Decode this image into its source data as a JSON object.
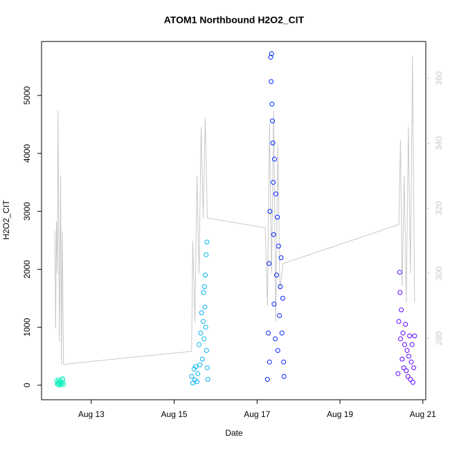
{
  "chart_data": {
    "type": "scatter",
    "title": "ATOM1 Northbound H2O2_CIT",
    "x_label": "Date",
    "y_label": "H2O2_CIT",
    "xlim": [
      11.8,
      21.07
    ],
    "xticks": [
      {
        "value": 13,
        "label": "Aug 13"
      },
      {
        "value": 15,
        "label": "Aug 15"
      },
      {
        "value": 17,
        "label": "Aug 17"
      },
      {
        "value": 19,
        "label": "Aug 19"
      },
      {
        "value": 21,
        "label": "Aug 21"
      }
    ],
    "ylim": [
      -251,
      5931
    ],
    "yticks": [
      0,
      1000,
      2000,
      3000,
      4000,
      5000
    ],
    "y2lim": [
      261.1,
      371.3
    ],
    "y2ticks": [
      280,
      300,
      320,
      340,
      360
    ],
    "series": [
      {
        "color": "#19f0c0",
        "x": [
          12.16,
          12.18,
          12.19,
          12.2,
          12.21,
          12.22,
          12.23,
          12.24,
          12.25,
          12.26,
          12.27,
          12.28,
          12.3,
          12.31,
          12.32,
          12.33
        ],
        "values": [
          80,
          20,
          50,
          10,
          95,
          30,
          60,
          5,
          40,
          70,
          15,
          25,
          90,
          110,
          45,
          10
        ]
      },
      {
        "color": "#00b2f0",
        "x": [
          15.42,
          15.45,
          15.48,
          15.5,
          15.52,
          15.55,
          15.57,
          15.6,
          15.62,
          15.64,
          15.66,
          15.68,
          15.7,
          15.71,
          15.72,
          15.73,
          15.74,
          15.75,
          15.76,
          15.77,
          15.78,
          15.79,
          15.8,
          15.81
        ],
        "values": [
          150,
          40,
          280,
          90,
          320,
          60,
          200,
          700,
          350,
          900,
          1250,
          450,
          1100,
          1600,
          800,
          1700,
          1350,
          1900,
          1000,
          2250,
          600,
          2470,
          300,
          100
        ]
      },
      {
        "color": "#0020ff",
        "x": [
          17.25,
          17.27,
          17.29,
          17.3,
          17.31,
          17.33,
          17.34,
          17.35,
          17.36,
          17.37,
          17.38,
          17.39,
          17.4,
          17.41,
          17.42,
          17.44,
          17.45,
          17.47,
          17.49,
          17.5,
          17.52,
          17.54,
          17.56,
          17.58,
          17.6,
          17.62,
          17.64,
          17.65
        ],
        "values": [
          100,
          900,
          2100,
          400,
          3000,
          5660,
          5240,
          5720,
          4850,
          4560,
          4180,
          3500,
          2600,
          1400,
          3900,
          800,
          3300,
          1900,
          2900,
          600,
          2400,
          1200,
          1700,
          2200,
          900,
          1500,
          400,
          150
        ]
      },
      {
        "color": "#5a00ff",
        "x": [
          20.4,
          20.42,
          20.44,
          20.45,
          20.46,
          20.48,
          20.5,
          20.52,
          20.54,
          20.56,
          20.58,
          20.6,
          20.62,
          20.64,
          20.66,
          20.68,
          20.7,
          20.72,
          20.74,
          20.76,
          20.78,
          20.8
        ],
        "values": [
          200,
          1100,
          1950,
          1600,
          800,
          1300,
          450,
          900,
          300,
          700,
          1050,
          250,
          600,
          150,
          500,
          850,
          100,
          400,
          700,
          50,
          300,
          850
        ]
      }
    ],
    "line": {
      "color": "#c8c8c8",
      "axis": "y2",
      "x": [
        12.12,
        12.14,
        12.16,
        12.18,
        12.2,
        12.23,
        12.26,
        12.28,
        12.3,
        12.33,
        15.42,
        15.45,
        15.5,
        15.55,
        15.6,
        15.65,
        15.7,
        15.75,
        15.8,
        17.2,
        17.25,
        17.3,
        17.35,
        17.4,
        17.45,
        17.5,
        17.55,
        17.63,
        20.42,
        20.46,
        20.5,
        20.55,
        20.6,
        20.65,
        20.7,
        20.75,
        20.8
      ],
      "values": [
        313,
        283,
        316,
        300,
        350,
        279,
        330,
        272,
        313,
        272,
        276,
        310,
        285,
        330,
        300,
        345,
        317,
        348,
        317,
        314,
        290,
        346,
        300,
        350,
        285,
        340,
        295,
        303,
        315,
        341,
        296,
        330,
        291,
        345,
        300,
        367,
        291
      ]
    }
  }
}
